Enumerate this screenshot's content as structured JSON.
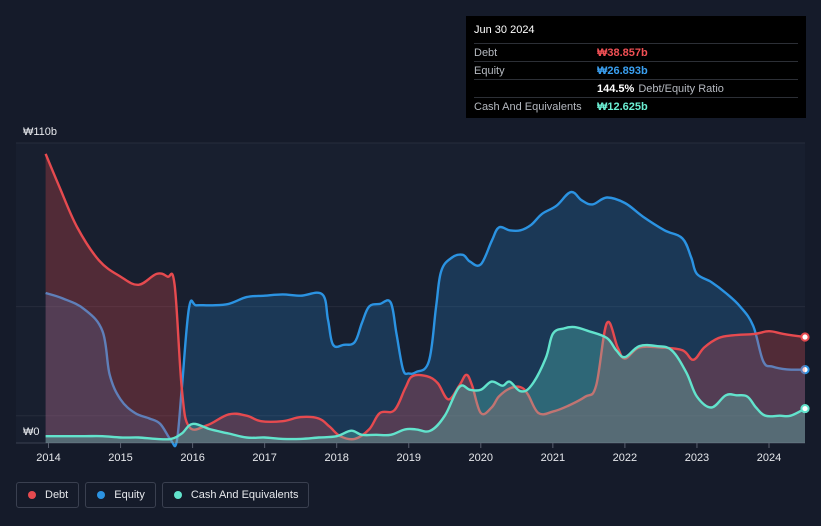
{
  "colors": {
    "debt": "#e64a4f",
    "equity": "#2b93e2",
    "cash": "#62e3cc",
    "debt_value": "#f25055",
    "equity_value": "#3a9ff0",
    "cash_value": "#6cf0d4"
  },
  "tooltip": {
    "date": "Jun 30 2024",
    "debt_label": "Debt",
    "debt_value": "₩38.857b",
    "equity_label": "Equity",
    "equity_value": "₩26.893b",
    "ratio_value": "144.5%",
    "ratio_label": "Debt/Equity Ratio",
    "cash_label": "Cash And Equivalents",
    "cash_value": "₩12.625b"
  },
  "legend": {
    "debt_label": "Debt",
    "equity_label": "Equity",
    "cash_label": "Cash And Equivalents"
  },
  "chart_data": {
    "type": "area",
    "title": "",
    "xlabel": "",
    "ylabel": "",
    "y_unit": "₩ billions",
    "ylim": [
      0,
      110
    ],
    "xlim": [
      2014.0,
      2024.5
    ],
    "y_axis_labels": {
      "top": "₩110b",
      "bottom": "₩0"
    },
    "x_ticks": [
      "2014",
      "2015",
      "2016",
      "2017",
      "2018",
      "2019",
      "2020",
      "2021",
      "2022",
      "2023",
      "2024"
    ],
    "series": [
      {
        "name": "Debt",
        "points": [
          [
            2013.96,
            106
          ],
          [
            2014.15,
            94
          ],
          [
            2014.4,
            79
          ],
          [
            2014.7,
            67
          ],
          [
            2015.0,
            61
          ],
          [
            2015.25,
            58
          ],
          [
            2015.5,
            62
          ],
          [
            2015.65,
            61
          ],
          [
            2015.75,
            58
          ],
          [
            2015.85,
            20
          ],
          [
            2015.95,
            6
          ],
          [
            2016.2,
            6.5
          ],
          [
            2016.5,
            10.5
          ],
          [
            2016.75,
            10
          ],
          [
            2016.95,
            8
          ],
          [
            2017.25,
            8
          ],
          [
            2017.5,
            9.5
          ],
          [
            2017.75,
            9
          ],
          [
            2017.9,
            6
          ],
          [
            2018.05,
            2.5
          ],
          [
            2018.25,
            1.5
          ],
          [
            2018.45,
            5
          ],
          [
            2018.6,
            11
          ],
          [
            2018.8,
            12
          ],
          [
            2018.95,
            20
          ],
          [
            2019.05,
            24.5
          ],
          [
            2019.25,
            24.5
          ],
          [
            2019.4,
            22
          ],
          [
            2019.55,
            16
          ],
          [
            2019.7,
            21
          ],
          [
            2019.8,
            25
          ],
          [
            2019.88,
            21
          ],
          [
            2020.0,
            11
          ],
          [
            2020.15,
            13
          ],
          [
            2020.25,
            17
          ],
          [
            2020.4,
            20
          ],
          [
            2020.55,
            20.5
          ],
          [
            2020.65,
            18
          ],
          [
            2020.8,
            11
          ],
          [
            2021.0,
            11.5
          ],
          [
            2021.2,
            13.5
          ],
          [
            2021.45,
            17
          ],
          [
            2021.6,
            21
          ],
          [
            2021.75,
            44
          ],
          [
            2021.9,
            35
          ],
          [
            2022.0,
            31
          ],
          [
            2022.2,
            35
          ],
          [
            2022.5,
            35
          ],
          [
            2022.8,
            34
          ],
          [
            2022.95,
            30.5
          ],
          [
            2023.1,
            35
          ],
          [
            2023.3,
            38.5
          ],
          [
            2023.5,
            39.5
          ],
          [
            2023.8,
            40
          ],
          [
            2024.0,
            41
          ],
          [
            2024.2,
            40
          ],
          [
            2024.5,
            38.857
          ]
        ]
      },
      {
        "name": "Equity",
        "points": [
          [
            2013.96,
            55
          ],
          [
            2014.2,
            53
          ],
          [
            2014.5,
            49
          ],
          [
            2014.75,
            41
          ],
          [
            2014.85,
            25
          ],
          [
            2015.0,
            16
          ],
          [
            2015.2,
            11
          ],
          [
            2015.4,
            9
          ],
          [
            2015.55,
            7
          ],
          [
            2015.7,
            1
          ],
          [
            2015.78,
            0.5
          ],
          [
            2015.85,
            20
          ],
          [
            2015.95,
            49.5
          ],
          [
            2016.05,
            50.5
          ],
          [
            2016.25,
            50.5
          ],
          [
            2016.5,
            51
          ],
          [
            2016.75,
            53.5
          ],
          [
            2017.0,
            54
          ],
          [
            2017.25,
            54.5
          ],
          [
            2017.5,
            54
          ],
          [
            2017.8,
            54.5
          ],
          [
            2017.88,
            45
          ],
          [
            2017.95,
            36
          ],
          [
            2018.1,
            36
          ],
          [
            2018.25,
            37
          ],
          [
            2018.35,
            44
          ],
          [
            2018.45,
            50
          ],
          [
            2018.6,
            51
          ],
          [
            2018.75,
            51.5
          ],
          [
            2018.83,
            40
          ],
          [
            2018.92,
            27
          ],
          [
            2019.0,
            25.5
          ],
          [
            2019.1,
            26
          ],
          [
            2019.28,
            30
          ],
          [
            2019.38,
            50
          ],
          [
            2019.45,
            63
          ],
          [
            2019.6,
            68
          ],
          [
            2019.75,
            69
          ],
          [
            2019.85,
            66.5
          ],
          [
            2020.0,
            65.5
          ],
          [
            2020.15,
            74
          ],
          [
            2020.25,
            79
          ],
          [
            2020.4,
            78
          ],
          [
            2020.55,
            78
          ],
          [
            2020.7,
            80
          ],
          [
            2020.85,
            84
          ],
          [
            2021.05,
            87
          ],
          [
            2021.25,
            92
          ],
          [
            2021.4,
            89
          ],
          [
            2021.55,
            87.5
          ],
          [
            2021.75,
            90
          ],
          [
            2022.0,
            88
          ],
          [
            2022.25,
            83
          ],
          [
            2022.55,
            78
          ],
          [
            2022.8,
            75
          ],
          [
            2022.92,
            68
          ],
          [
            2023.0,
            62
          ],
          [
            2023.2,
            59
          ],
          [
            2023.4,
            55
          ],
          [
            2023.6,
            50
          ],
          [
            2023.78,
            43
          ],
          [
            2023.92,
            30
          ],
          [
            2024.05,
            28
          ],
          [
            2024.25,
            27
          ],
          [
            2024.5,
            26.893
          ]
        ]
      },
      {
        "name": "Cash And Equivalents",
        "points": [
          [
            2013.96,
            2.5
          ],
          [
            2014.2,
            2.5
          ],
          [
            2014.5,
            2.5
          ],
          [
            2014.75,
            2.5
          ],
          [
            2015.0,
            2
          ],
          [
            2015.25,
            2
          ],
          [
            2015.5,
            1.5
          ],
          [
            2015.7,
            1.5
          ],
          [
            2015.85,
            3.5
          ],
          [
            2016.0,
            7
          ],
          [
            2016.25,
            5
          ],
          [
            2016.5,
            3.5
          ],
          [
            2016.75,
            2
          ],
          [
            2017.0,
            2
          ],
          [
            2017.25,
            1.5
          ],
          [
            2017.5,
            1.5
          ],
          [
            2017.75,
            2
          ],
          [
            2018.0,
            2.5
          ],
          [
            2018.2,
            4.5
          ],
          [
            2018.35,
            3
          ],
          [
            2018.55,
            3
          ],
          [
            2018.75,
            3
          ],
          [
            2018.95,
            5
          ],
          [
            2019.1,
            5
          ],
          [
            2019.3,
            4.5
          ],
          [
            2019.5,
            10
          ],
          [
            2019.7,
            20.5
          ],
          [
            2019.85,
            19.5
          ],
          [
            2020.0,
            19.5
          ],
          [
            2020.15,
            22.5
          ],
          [
            2020.3,
            21
          ],
          [
            2020.4,
            22.5
          ],
          [
            2020.55,
            19
          ],
          [
            2020.7,
            21
          ],
          [
            2020.9,
            31
          ],
          [
            2021.0,
            40
          ],
          [
            2021.15,
            42
          ],
          [
            2021.3,
            42.5
          ],
          [
            2021.5,
            41
          ],
          [
            2021.75,
            38.5
          ],
          [
            2021.88,
            34
          ],
          [
            2022.0,
            31.5
          ],
          [
            2022.2,
            35.5
          ],
          [
            2022.45,
            35.5
          ],
          [
            2022.65,
            34
          ],
          [
            2022.85,
            26
          ],
          [
            2023.0,
            17
          ],
          [
            2023.2,
            13
          ],
          [
            2023.4,
            17.5
          ],
          [
            2023.55,
            17.5
          ],
          [
            2023.7,
            17
          ],
          [
            2023.82,
            13
          ],
          [
            2023.95,
            10
          ],
          [
            2024.15,
            10
          ],
          [
            2024.3,
            10
          ],
          [
            2024.5,
            12.625
          ]
        ]
      }
    ]
  }
}
